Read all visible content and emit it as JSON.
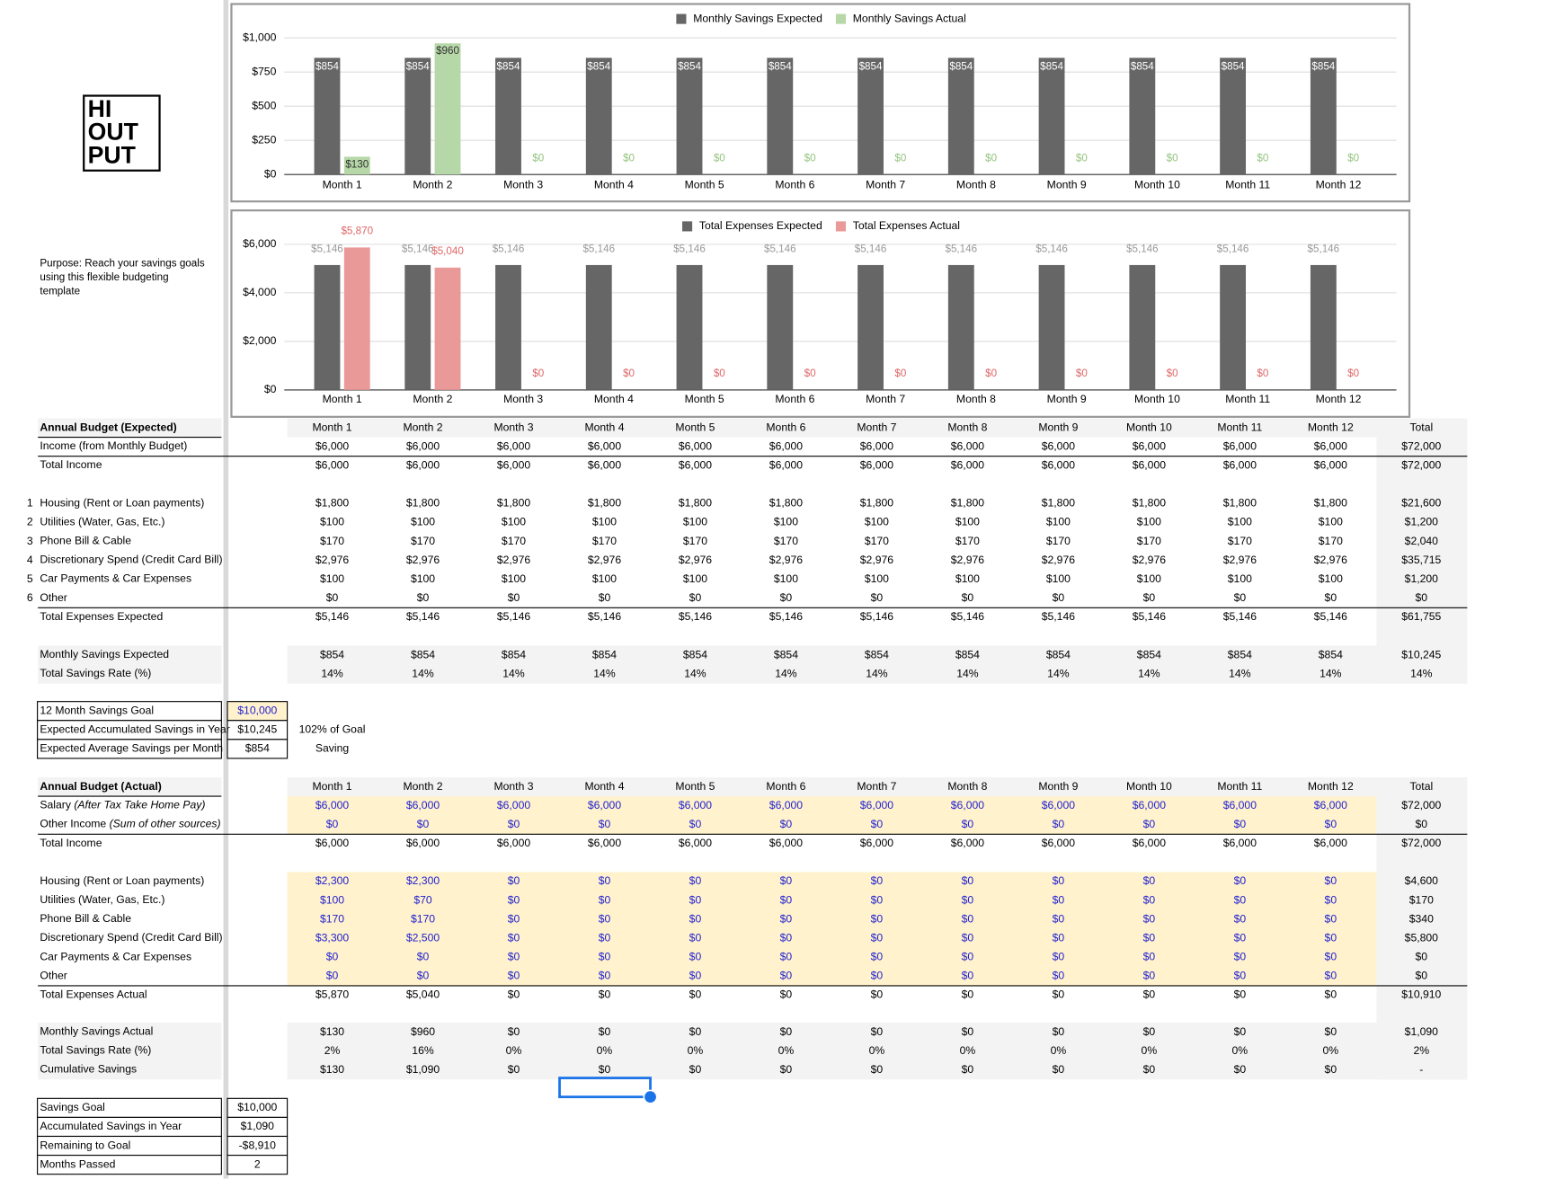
{
  "logo": [
    "HI",
    "OUT",
    "PUT"
  ],
  "purpose": "Purpose: Reach your savings goals using this flexible budgeting template",
  "chart_data": [
    {
      "type": "bar",
      "categories": [
        "Month 1",
        "Month 2",
        "Month 3",
        "Month 4",
        "Month 5",
        "Month 6",
        "Month 7",
        "Month 8",
        "Month 9",
        "Month 10",
        "Month 11",
        "Month 12"
      ],
      "series": [
        {
          "name": "Monthly Savings Expected",
          "color": "#666666",
          "values": [
            854,
            854,
            854,
            854,
            854,
            854,
            854,
            854,
            854,
            854,
            854,
            854
          ],
          "value_labels": [
            "$854",
            "$854",
            "$854",
            "$854",
            "$854",
            "$854",
            "$854",
            "$854",
            "$854",
            "$854",
            "$854",
            "$854"
          ]
        },
        {
          "name": "Monthly Savings Actual",
          "color": "#b6d7a8",
          "values": [
            130,
            960,
            0,
            0,
            0,
            0,
            0,
            0,
            0,
            0,
            0,
            0
          ],
          "value_labels": [
            "$130",
            "$960",
            "$0",
            "$0",
            "$0",
            "$0",
            "$0",
            "$0",
            "$0",
            "$0",
            "$0",
            "$0"
          ]
        }
      ],
      "ylim": [
        0,
        1000
      ],
      "yticks": [
        {
          "value": 0,
          "label": "$0"
        },
        {
          "value": 250,
          "label": "$250"
        },
        {
          "value": 500,
          "label": "$500"
        },
        {
          "value": 750,
          "label": "$750"
        },
        {
          "value": 1000,
          "label": "$1,000"
        }
      ],
      "grid": true,
      "legend": "top"
    },
    {
      "type": "bar",
      "categories": [
        "Month 1",
        "Month 2",
        "Month 3",
        "Month 4",
        "Month 5",
        "Month 6",
        "Month 7",
        "Month 8",
        "Month 9",
        "Month 10",
        "Month 11",
        "Month 12"
      ],
      "series": [
        {
          "name": "Total Expenses Expected",
          "color": "#666666",
          "values": [
            5146,
            5146,
            5146,
            5146,
            5146,
            5146,
            5146,
            5146,
            5146,
            5146,
            5146,
            5146
          ],
          "value_labels": [
            "$5,146",
            "$5,146",
            "$5,146",
            "$5,146",
            "$5,146",
            "$5,146",
            "$5,146",
            "$5,146",
            "$5,146",
            "$5,146",
            "$5,146",
            "$5,146"
          ]
        },
        {
          "name": "Total Expenses Actual",
          "color": "#ea9999",
          "values": [
            5870,
            5040,
            0,
            0,
            0,
            0,
            0,
            0,
            0,
            0,
            0,
            0
          ],
          "value_labels": [
            "$5,870",
            "$5,040",
            "$0",
            "$0",
            "$0",
            "$0",
            "$0",
            "$0",
            "$0",
            "$0",
            "$0",
            "$0"
          ]
        }
      ],
      "ylim": [
        0,
        6000
      ],
      "yticks": [
        {
          "value": 0,
          "label": "$0"
        },
        {
          "value": 2000,
          "label": "$2,000"
        },
        {
          "value": 4000,
          "label": "$4,000"
        },
        {
          "value": 6000,
          "label": "$6,000"
        }
      ],
      "grid": true,
      "legend": "top"
    }
  ],
  "expected": {
    "header": [
      "Annual Budget (Expected)",
      "Month 1",
      "Month 2",
      "Month 3",
      "Month 4",
      "Month 5",
      "Month 6",
      "Month 7",
      "Month 8",
      "Month 9",
      "Month 10",
      "Month 11",
      "Month 12",
      "Total"
    ],
    "rows": [
      {
        "label": "Income (from Monthly Budget)",
        "cells": [
          "$6,000",
          "$6,000",
          "$6,000",
          "$6,000",
          "$6,000",
          "$6,000",
          "$6,000",
          "$6,000",
          "$6,000",
          "$6,000",
          "$6,000",
          "$6,000",
          "$72,000"
        ]
      },
      {
        "label": "Total Income",
        "cells": [
          "$6,000",
          "$6,000",
          "$6,000",
          "$6,000",
          "$6,000",
          "$6,000",
          "$6,000",
          "$6,000",
          "$6,000",
          "$6,000",
          "$6,000",
          "$6,000",
          "$72,000"
        ]
      },
      {
        "num": "1",
        "label": "Housing (Rent or Loan payments)",
        "cells": [
          "$1,800",
          "$1,800",
          "$1,800",
          "$1,800",
          "$1,800",
          "$1,800",
          "$1,800",
          "$1,800",
          "$1,800",
          "$1,800",
          "$1,800",
          "$1,800",
          "$21,600"
        ]
      },
      {
        "num": "2",
        "label": "Utilities (Water, Gas, Etc.)",
        "cells": [
          "$100",
          "$100",
          "$100",
          "$100",
          "$100",
          "$100",
          "$100",
          "$100",
          "$100",
          "$100",
          "$100",
          "$100",
          "$1,200"
        ]
      },
      {
        "num": "3",
        "label": "Phone Bill & Cable",
        "cells": [
          "$170",
          "$170",
          "$170",
          "$170",
          "$170",
          "$170",
          "$170",
          "$170",
          "$170",
          "$170",
          "$170",
          "$170",
          "$2,040"
        ]
      },
      {
        "num": "4",
        "label": "Discretionary Spend (Credit Card Bill)",
        "cells": [
          "$2,976",
          "$2,976",
          "$2,976",
          "$2,976",
          "$2,976",
          "$2,976",
          "$2,976",
          "$2,976",
          "$2,976",
          "$2,976",
          "$2,976",
          "$2,976",
          "$35,715"
        ]
      },
      {
        "num": "5",
        "label": "Car Payments & Car Expenses",
        "cells": [
          "$100",
          "$100",
          "$100",
          "$100",
          "$100",
          "$100",
          "$100",
          "$100",
          "$100",
          "$100",
          "$100",
          "$100",
          "$1,200"
        ]
      },
      {
        "num": "6",
        "label": "Other",
        "cells": [
          "$0",
          "$0",
          "$0",
          "$0",
          "$0",
          "$0",
          "$0",
          "$0",
          "$0",
          "$0",
          "$0",
          "$0",
          "$0"
        ]
      },
      {
        "label": "Total Expenses Expected",
        "cells": [
          "$5,146",
          "$5,146",
          "$5,146",
          "$5,146",
          "$5,146",
          "$5,146",
          "$5,146",
          "$5,146",
          "$5,146",
          "$5,146",
          "$5,146",
          "$5,146",
          "$61,755"
        ]
      },
      {
        "label": "Monthly Savings Expected",
        "cells": [
          "$854",
          "$854",
          "$854",
          "$854",
          "$854",
          "$854",
          "$854",
          "$854",
          "$854",
          "$854",
          "$854",
          "$854",
          "$10,245"
        ]
      },
      {
        "label": "Total Savings Rate (%)",
        "cells": [
          "14%",
          "14%",
          "14%",
          "14%",
          "14%",
          "14%",
          "14%",
          "14%",
          "14%",
          "14%",
          "14%",
          "14%",
          "14%"
        ]
      }
    ]
  },
  "expected_goal": [
    {
      "label": "12 Month Savings Goal",
      "value": "$10,000"
    },
    {
      "label": "Expected Accumulated Savings in Year",
      "value": "$10,245",
      "extra": "102% of Goal"
    },
    {
      "label": "Expected Average Savings per Month",
      "value": "$854",
      "extra": "Saving"
    }
  ],
  "actual": {
    "header": [
      "Annual Budget (Actual)",
      "Month 1",
      "Month 2",
      "Month 3",
      "Month 4",
      "Month 5",
      "Month 6",
      "Month 7",
      "Month 8",
      "Month 9",
      "Month 10",
      "Month 11",
      "Month 12",
      "Total"
    ],
    "rows": [
      {
        "label": "Salary",
        "note": "(After Tax Take Home Pay)",
        "cells": [
          "$6,000",
          "$6,000",
          "$6,000",
          "$6,000",
          "$6,000",
          "$6,000",
          "$6,000",
          "$6,000",
          "$6,000",
          "$6,000",
          "$6,000",
          "$6,000",
          "$72,000"
        ]
      },
      {
        "label": "Other Income",
        "note": "(Sum of other sources)",
        "cells": [
          "$0",
          "$0",
          "$0",
          "$0",
          "$0",
          "$0",
          "$0",
          "$0",
          "$0",
          "$0",
          "$0",
          "$0",
          "$0"
        ]
      },
      {
        "label": "Total Income",
        "cells": [
          "$6,000",
          "$6,000",
          "$6,000",
          "$6,000",
          "$6,000",
          "$6,000",
          "$6,000",
          "$6,000",
          "$6,000",
          "$6,000",
          "$6,000",
          "$6,000",
          "$72,000"
        ]
      },
      {
        "label": "Housing (Rent or Loan payments)",
        "cells": [
          "$2,300",
          "$2,300",
          "$0",
          "$0",
          "$0",
          "$0",
          "$0",
          "$0",
          "$0",
          "$0",
          "$0",
          "$0",
          "$4,600"
        ]
      },
      {
        "label": "Utilities (Water, Gas, Etc.)",
        "cells": [
          "$100",
          "$70",
          "$0",
          "$0",
          "$0",
          "$0",
          "$0",
          "$0",
          "$0",
          "$0",
          "$0",
          "$0",
          "$170"
        ]
      },
      {
        "label": "Phone Bill & Cable",
        "cells": [
          "$170",
          "$170",
          "$0",
          "$0",
          "$0",
          "$0",
          "$0",
          "$0",
          "$0",
          "$0",
          "$0",
          "$0",
          "$340"
        ]
      },
      {
        "label": "Discretionary Spend (Credit Card Bill)",
        "cells": [
          "$3,300",
          "$2,500",
          "$0",
          "$0",
          "$0",
          "$0",
          "$0",
          "$0",
          "$0",
          "$0",
          "$0",
          "$0",
          "$5,800"
        ]
      },
      {
        "label": "Car Payments & Car Expenses",
        "cells": [
          "$0",
          "$0",
          "$0",
          "$0",
          "$0",
          "$0",
          "$0",
          "$0",
          "$0",
          "$0",
          "$0",
          "$0",
          "$0"
        ]
      },
      {
        "label": "Other",
        "cells": [
          "$0",
          "$0",
          "$0",
          "$0",
          "$0",
          "$0",
          "$0",
          "$0",
          "$0",
          "$0",
          "$0",
          "$0",
          "$0"
        ]
      },
      {
        "label": "Total Expenses Actual",
        "cells": [
          "$5,870",
          "$5,040",
          "$0",
          "$0",
          "$0",
          "$0",
          "$0",
          "$0",
          "$0",
          "$0",
          "$0",
          "$0",
          "$10,910"
        ]
      },
      {
        "label": "Monthly Savings Actual",
        "cells": [
          "$130",
          "$960",
          "$0",
          "$0",
          "$0",
          "$0",
          "$0",
          "$0",
          "$0",
          "$0",
          "$0",
          "$0",
          "$1,090"
        ]
      },
      {
        "label": "Total Savings Rate (%)",
        "cells": [
          "2%",
          "16%",
          "0%",
          "0%",
          "0%",
          "0%",
          "0%",
          "0%",
          "0%",
          "0%",
          "0%",
          "0%",
          "2%"
        ]
      },
      {
        "label": "Cumulative Savings",
        "cells": [
          "$130",
          "$1,090",
          "$0",
          "$0",
          "$0",
          "$0",
          "$0",
          "$0",
          "$0",
          "$0",
          "$0",
          "$0",
          "-"
        ]
      }
    ]
  },
  "actual_goal": [
    {
      "label": "Savings Goal",
      "value": "$10,000"
    },
    {
      "label": "Accumulated Savings in Year",
      "value": "$1,090"
    },
    {
      "label": "Remaining to Goal",
      "value": "-$8,910"
    },
    {
      "label": "Months Passed",
      "value": "2"
    }
  ]
}
